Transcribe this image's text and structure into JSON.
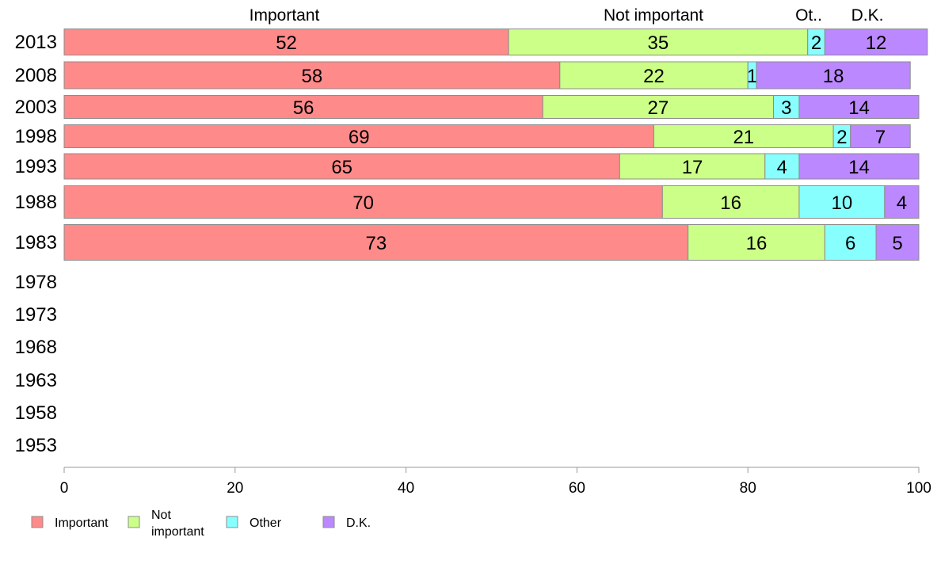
{
  "chart_data": {
    "type": "bar",
    "orientation": "horizontal",
    "stacked": true,
    "years": [
      "2013",
      "2008",
      "2003",
      "1998",
      "1993",
      "1988",
      "1983",
      "1978",
      "1973",
      "1968",
      "1963",
      "1958",
      "1953"
    ],
    "series": [
      {
        "name": "Important",
        "color": "#ff8a8a",
        "values": [
          52,
          58,
          56,
          69,
          65,
          70,
          73,
          null,
          null,
          null,
          null,
          null,
          null
        ]
      },
      {
        "name": "Not important",
        "color": "#ccff88",
        "values": [
          35,
          22,
          27,
          21,
          17,
          16,
          16,
          null,
          null,
          null,
          null,
          null,
          null
        ]
      },
      {
        "name": "Other",
        "color": "#88ffff",
        "values": [
          2,
          1,
          3,
          2,
          4,
          10,
          6,
          null,
          null,
          null,
          null,
          null,
          null
        ]
      },
      {
        "name": "D.K.",
        "color": "#bb88ff",
        "values": [
          12,
          18,
          14,
          7,
          14,
          4,
          5,
          null,
          null,
          null,
          null,
          null,
          null
        ]
      }
    ],
    "column_headers": [
      "Important",
      "Not important",
      "Ot..",
      "D.K."
    ],
    "legend": {
      "placement": "bottom-left",
      "items": [
        {
          "label_lines": [
            "Important"
          ],
          "color": "#ff8a8a"
        },
        {
          "label_lines": [
            "Not",
            "important"
          ],
          "color": "#ccff88"
        },
        {
          "label_lines": [
            "Other"
          ],
          "color": "#88ffff"
        },
        {
          "label_lines": [
            "D.K."
          ],
          "color": "#bb88ff"
        }
      ]
    },
    "x_axis": {
      "min": 0,
      "max": 100,
      "ticks": [
        0,
        20,
        40,
        60,
        80,
        100
      ]
    },
    "grid": false
  }
}
